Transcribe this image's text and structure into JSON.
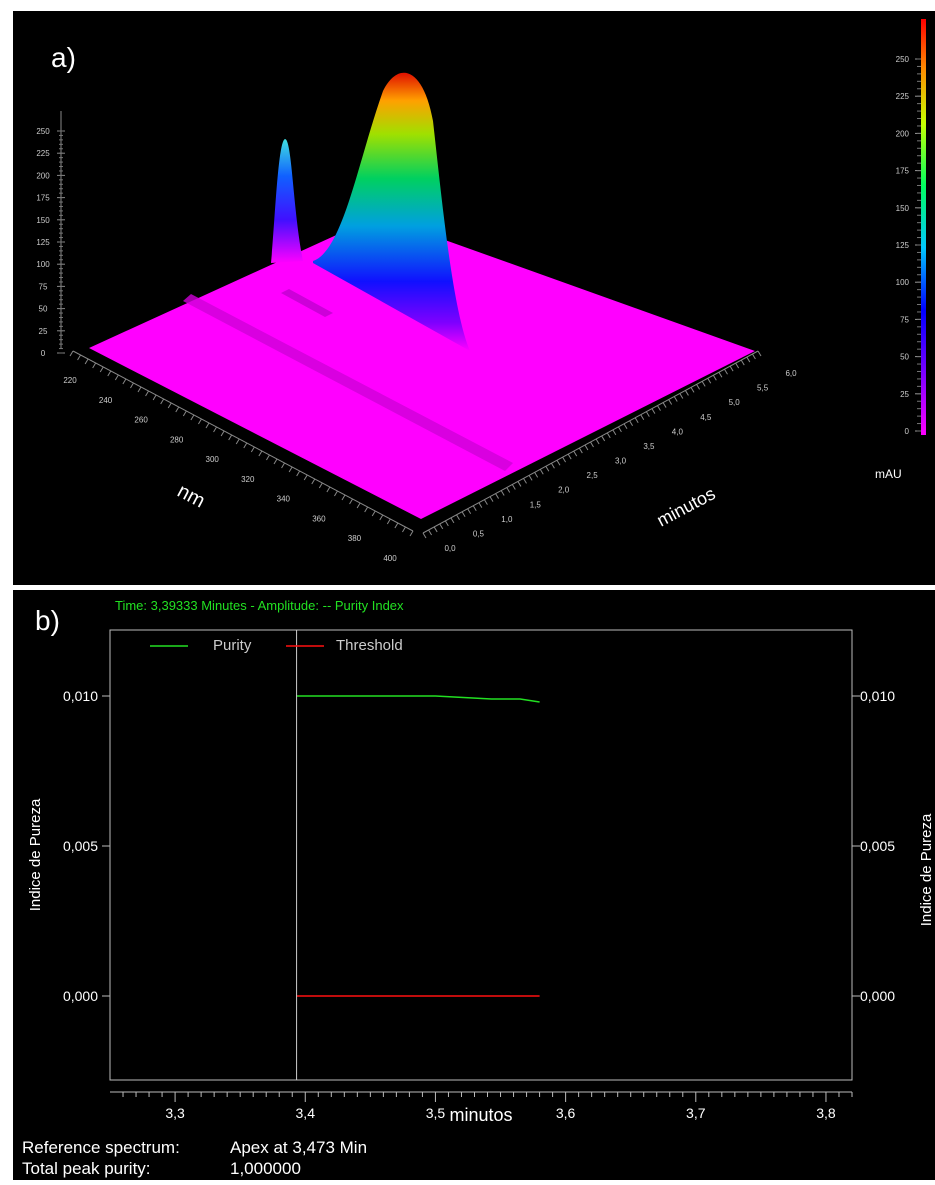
{
  "panel_a": {
    "label": "a)",
    "colorbar_unit": "mAU",
    "nm_label": "nm",
    "min_label": "minutos",
    "colorbar_ticks": [
      "0",
      "25",
      "50",
      "75",
      "100",
      "125",
      "150",
      "175",
      "200",
      "225",
      "250"
    ],
    "z_ticks": [
      "0",
      "25",
      "50",
      "75",
      "100",
      "125",
      "150",
      "175",
      "200",
      "225",
      "250"
    ],
    "nm_ticks": [
      "220",
      "240",
      "260",
      "280",
      "300",
      "320",
      "340",
      "360",
      "380",
      "400"
    ],
    "min_ticks": [
      "0,0",
      "0,5",
      "1,0",
      "1,5",
      "2,0",
      "2,5",
      "3,0",
      "3,5",
      "4,0",
      "4,5",
      "5,0",
      "5,5",
      "6,0"
    ],
    "colors": {
      "surface": "#ff00ff",
      "background": "#000000"
    }
  },
  "panel_b": {
    "label": "b)",
    "status": "Time:  3,39333 Minutes - Amplitude:  -- Purity  Index",
    "footer": {
      "reference_label": "Reference spectrum:",
      "reference_value": "Apex at 3,473 Min",
      "purity_label": "Total peak purity:",
      "purity_value": "1,000000"
    }
  },
  "chart_data": [
    {
      "type": "surface3d",
      "x_axis": {
        "label": "nm",
        "range": [
          220,
          400
        ]
      },
      "y_axis": {
        "label": "minutos",
        "range": [
          0,
          6
        ]
      },
      "z_axis": {
        "label": "mAU",
        "range": [
          0,
          270
        ]
      },
      "peaks": [
        {
          "time_min": 3.3,
          "wavelength_nm": 225,
          "height_mAU": 240
        },
        {
          "time_min": 3.5,
          "wavelength_nm": 240,
          "height_mAU": 270
        }
      ]
    },
    {
      "type": "line",
      "title": "",
      "xlabel": "minutos",
      "ylabel": "Indice de Pureza",
      "ylabel_right": "Indice de Pureza",
      "xlim": [
        3.25,
        3.82
      ],
      "ylim": [
        -0.0028,
        0.0122
      ],
      "xticks": [
        3.3,
        3.4,
        3.5,
        3.6,
        3.7,
        3.8
      ],
      "xtick_labels": [
        "3,3",
        "3,4",
        "3,5",
        "3,6",
        "3,7",
        "3,8"
      ],
      "yticks": [
        0.0,
        0.005,
        0.01
      ],
      "ytick_labels": [
        "0,000",
        "0,005",
        "0,010"
      ],
      "cursor_x": 3.39333,
      "legend_position": "top-left",
      "series": [
        {
          "name": "Purity",
          "color": "#22e022",
          "points": [
            [
              3.393,
              0.01
            ],
            [
              3.5,
              0.01
            ],
            [
              3.543,
              0.0099
            ],
            [
              3.565,
              0.0099
            ],
            [
              3.58,
              0.0098
            ]
          ]
        },
        {
          "name": "Threshold",
          "color": "#ff1010",
          "points": [
            [
              3.393,
              0.0
            ],
            [
              3.58,
              0.0
            ]
          ]
        }
      ]
    }
  ]
}
